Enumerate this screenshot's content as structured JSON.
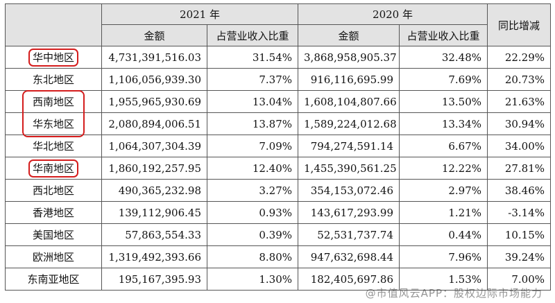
{
  "header": {
    "year_2021": "2021 年",
    "year_2020": "2020 年",
    "yoy": "同比增减",
    "amount_2021": "金额",
    "share_2021": "占营业收入比重",
    "amount_2020": "金额",
    "share_2020": "占营业收入比重"
  },
  "rows": [
    {
      "region": "华中地区",
      "amount_2021": "4,731,391,516.03",
      "share_2021": "31.54%",
      "amount_2020": "3,868,958,905.37",
      "share_2020": "32.48%",
      "yoy": "22.29%"
    },
    {
      "region": "东北地区",
      "amount_2021": "1,106,056,939.30",
      "share_2021": "7.37%",
      "amount_2020": "916,116,695.99",
      "share_2020": "7.69%",
      "yoy": "20.73%"
    },
    {
      "region": "西南地区",
      "amount_2021": "1,955,965,930.69",
      "share_2021": "13.04%",
      "amount_2020": "1,608,104,807.66",
      "share_2020": "13.50%",
      "yoy": "21.63%"
    },
    {
      "region": "华东地区",
      "amount_2021": "2,080,894,006.51",
      "share_2021": "13.87%",
      "amount_2020": "1,589,224,012.68",
      "share_2020": "13.34%",
      "yoy": "30.94%"
    },
    {
      "region": "华北地区",
      "amount_2021": "1,064,307,304.39",
      "share_2021": "7.09%",
      "amount_2020": "794,274,591.14",
      "share_2020": "6.67%",
      "yoy": "34.00%"
    },
    {
      "region": "华南地区",
      "amount_2021": "1,860,192,257.95",
      "share_2021": "12.40%",
      "amount_2020": "1,455,390,561.25",
      "share_2020": "12.22%",
      "yoy": "27.81%"
    },
    {
      "region": "西北地区",
      "amount_2021": "490,365,232.98",
      "share_2021": "3.27%",
      "amount_2020": "354,153,072.46",
      "share_2020": "2.97%",
      "yoy": "38.46%"
    },
    {
      "region": "香港地区",
      "amount_2021": "139,112,906.45",
      "share_2021": "0.93%",
      "amount_2020": "143,617,293.99",
      "share_2020": "1.21%",
      "yoy": "-3.14%"
    },
    {
      "region": "美国地区",
      "amount_2021": "57,863,554.33",
      "share_2021": "0.39%",
      "amount_2020": "52,531,737.74",
      "share_2020": "0.44%",
      "yoy": "10.15%"
    },
    {
      "region": "欧洲地区",
      "amount_2021": "1,319,492,393.66",
      "share_2021": "8.80%",
      "amount_2020": "947,632,698.44",
      "share_2020": "7.96%",
      "yoy": "39.24%"
    },
    {
      "region": "东南亚地区",
      "amount_2021": "195,167,395.93",
      "share_2021": "1.30%",
      "amount_2020": "182,405,697.86",
      "share_2020": "1.53%",
      "yoy": "7.00%"
    }
  ],
  "watermark": "@市值风云APP：股权边际市场能力",
  "highlight_color": "#d41c1c"
}
